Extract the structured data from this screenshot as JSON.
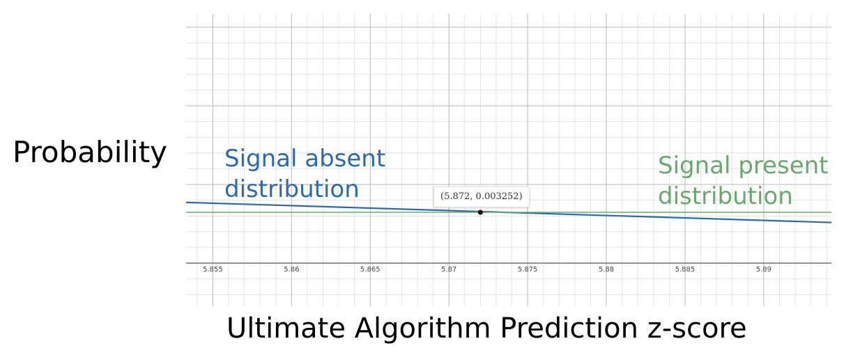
{
  "chart_data": {
    "type": "line",
    "title": "",
    "xlabel": "Ultimate Algorithm Prediction z-score",
    "ylabel": "Probability",
    "xlim": [
      5.8533,
      5.8943
    ],
    "x_ticks": [
      "5.855",
      "5.86",
      "5.865",
      "5.87",
      "5.875",
      "5.88",
      "5.885",
      "5.89"
    ],
    "grid": true,
    "series": [
      {
        "name": "Signal absent distribution",
        "name_lines": [
          "Signal absent",
          "distribution"
        ],
        "color": "#2d6aad",
        "x": [
          5.8533,
          5.8943
        ],
        "y": [
          0.003371,
          0.00313
        ]
      },
      {
        "name": "Signal present distribution",
        "name_lines": [
          "Signal present",
          "distribution"
        ],
        "color": "#6aa870",
        "x": [
          5.8533,
          5.8943
        ],
        "y": [
          0.003252,
          0.003252
        ]
      }
    ],
    "annotations": [
      {
        "text": "(5.872, 0.003252)",
        "x": 5.872,
        "y": 0.003252
      }
    ]
  }
}
